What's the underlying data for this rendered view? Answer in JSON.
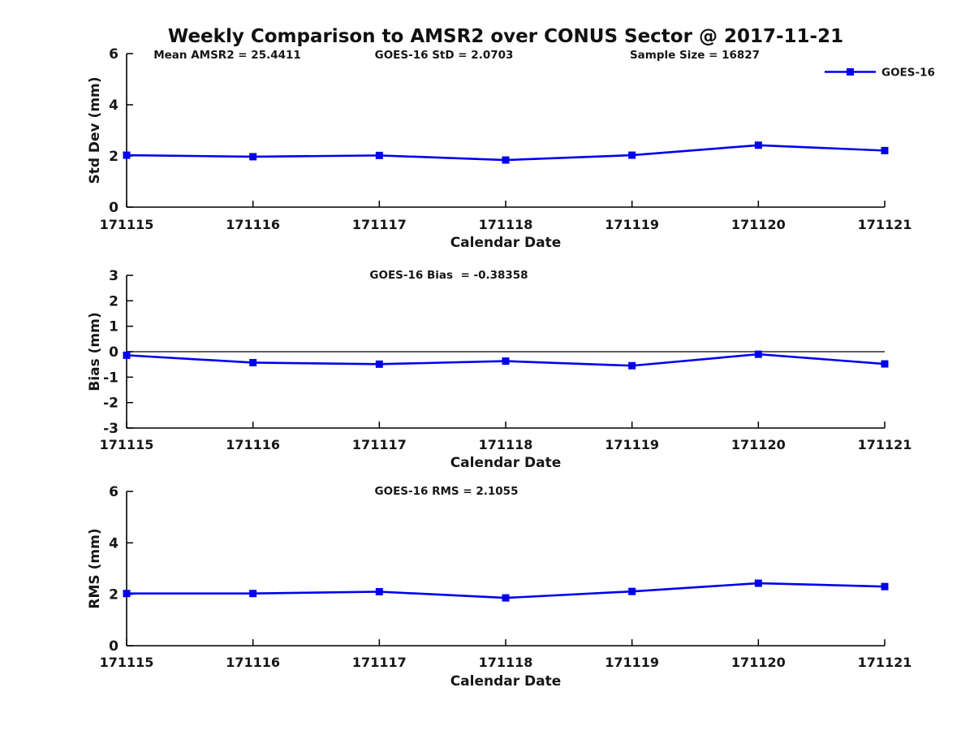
{
  "figure": {
    "title": "Weekly Comparison to AMSR2 over CONUS Sector @ 2017-11-21"
  },
  "colors": {
    "line": "#0000ee",
    "axis": "#000000",
    "text": "#161616",
    "background": "#ffffff"
  },
  "legend": {
    "label": "GOES-16",
    "position": "top-right"
  },
  "chart_data": [
    {
      "type": "line",
      "panel": "std-dev",
      "categories": [
        "171115",
        "171116",
        "171117",
        "171118",
        "171119",
        "171120",
        "171121"
      ],
      "series": [
        {
          "name": "GOES-16",
          "values": [
            2.03,
            1.97,
            2.02,
            1.84,
            2.03,
            2.42,
            2.21
          ]
        }
      ],
      "annotations": [
        "Mean AMSR2 = 25.4411",
        "GOES-16 StD = 2.0703",
        "Sample Size = 16827"
      ],
      "xlabel": "Calendar Date",
      "ylabel": "Std Dev (mm)",
      "ylim": [
        0,
        6
      ],
      "yticks": [
        0,
        2,
        4,
        6
      ],
      "grid": false,
      "zero_line": false,
      "has_legend": true
    },
    {
      "type": "line",
      "panel": "bias",
      "categories": [
        "171115",
        "171116",
        "171117",
        "171118",
        "171119",
        "171120",
        "171121"
      ],
      "series": [
        {
          "name": "GOES-16",
          "values": [
            -0.14,
            -0.43,
            -0.49,
            -0.37,
            -0.55,
            -0.1,
            -0.48
          ]
        }
      ],
      "annotations": [
        "GOES-16 Bias  = -0.38358"
      ],
      "xlabel": "Calendar Date",
      "ylabel": "Bias (mm)",
      "ylim": [
        -3,
        3
      ],
      "yticks": [
        -3,
        -2,
        -1,
        0,
        1,
        2,
        3
      ],
      "grid": false,
      "zero_line": true,
      "has_legend": false
    },
    {
      "type": "line",
      "panel": "rms",
      "categories": [
        "171115",
        "171116",
        "171117",
        "171118",
        "171119",
        "171120",
        "171121"
      ],
      "series": [
        {
          "name": "GOES-16",
          "values": [
            2.03,
            2.03,
            2.1,
            1.86,
            2.11,
            2.43,
            2.3
          ]
        }
      ],
      "annotations": [
        "GOES-16 RMS = 2.1055"
      ],
      "xlabel": "Calendar Date",
      "ylabel": "RMS (mm)",
      "ylim": [
        0,
        6
      ],
      "yticks": [
        0,
        2,
        4,
        6
      ],
      "grid": false,
      "zero_line": false,
      "has_legend": false
    }
  ]
}
